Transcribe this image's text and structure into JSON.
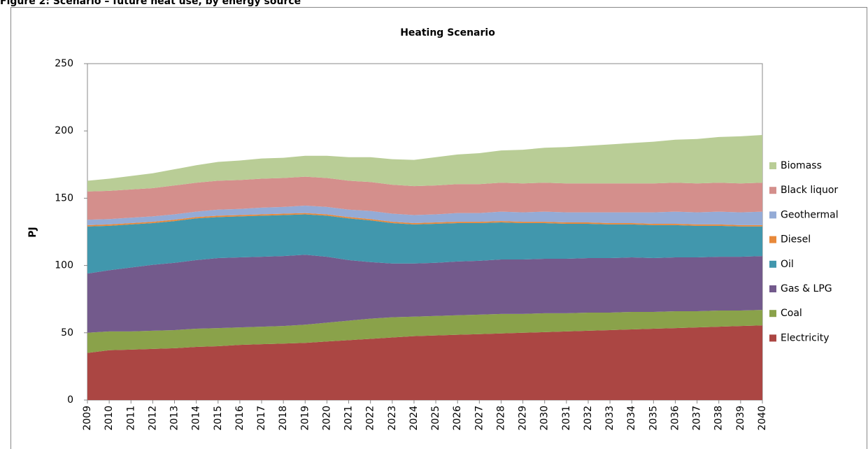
{
  "caption": "Figure 2: Scenario – future heat use, by energy source",
  "chart_data": {
    "type": "stacked_area",
    "title": "Heating Scenario",
    "y_label": "PJ",
    "categories": [
      "2009",
      "2010",
      "2011",
      "2012",
      "2013",
      "2014",
      "2015",
      "2016",
      "2017",
      "2018",
      "2019",
      "2020",
      "2021",
      "2022",
      "2023",
      "2024",
      "2025",
      "2026",
      "2027",
      "2028",
      "2029",
      "2030",
      "2031",
      "2032",
      "2033",
      "2034",
      "2035",
      "2036",
      "2037",
      "2038",
      "2039",
      "2040"
    ],
    "ylim": [
      0,
      250
    ],
    "yticks": [
      0,
      50,
      100,
      150,
      200,
      250
    ],
    "legend": "right",
    "series": [
      {
        "name": "Electricity",
        "color": "#ab4643",
        "values": [
          35,
          37,
          37.5,
          38,
          38.5,
          39.5,
          40,
          41,
          41.5,
          42,
          42.5,
          43.5,
          44.5,
          45.5,
          46.5,
          47.5,
          48,
          48.5,
          49,
          49.5,
          50,
          50.5,
          51,
          51.5,
          52,
          52.5,
          53,
          53.5,
          54,
          54.5,
          55,
          55.5
        ]
      },
      {
        "name": "Coal",
        "color": "#8aa24a",
        "values": [
          15,
          14,
          13.5,
          13.5,
          13.5,
          13.5,
          13.5,
          13,
          13,
          13,
          13.5,
          14,
          14.5,
          15,
          15,
          14.5,
          14.5,
          14.5,
          14.5,
          14.5,
          14,
          14,
          13.5,
          13.5,
          13,
          13,
          12.5,
          12.5,
          12,
          12,
          11.5,
          11.5
        ]
      },
      {
        "name": "Gas & LPG",
        "color": "#735a8c",
        "values": [
          44,
          45.5,
          47.5,
          49,
          50,
          51,
          52,
          52,
          52,
          52,
          52,
          49,
          45,
          42,
          40,
          39.5,
          39.5,
          40,
          40,
          40.5,
          40.5,
          40.5,
          40.5,
          40.5,
          40.5,
          40.5,
          40,
          40,
          40,
          40,
          40,
          40
        ]
      },
      {
        "name": "Oil",
        "color": "#4197ad",
        "values": [
          35,
          33,
          32,
          31,
          31,
          31,
          30.5,
          30.5,
          30.5,
          30.5,
          30,
          30.5,
          31,
          31,
          30,
          29,
          29,
          28.5,
          28,
          27.5,
          27,
          26.5,
          26,
          25.5,
          25,
          24.5,
          24.5,
          24,
          23.5,
          23,
          22.5,
          22
        ]
      },
      {
        "name": "Diesel",
        "color": "#e8893a",
        "values": [
          1,
          1,
          1,
          1,
          1,
          1,
          1,
          1,
          1,
          1,
          1,
          1,
          1,
          1,
          1,
          1,
          1,
          1,
          1,
          1,
          1,
          1,
          1,
          1,
          1,
          1,
          1,
          1,
          1,
          1,
          1,
          1
        ]
      },
      {
        "name": "Geothermal",
        "color": "#94abd6",
        "values": [
          4,
          4,
          4,
          4,
          4,
          4,
          4.5,
          4.5,
          5,
          5,
          5.5,
          5.5,
          5.5,
          6,
          6,
          6,
          6,
          6.5,
          6.5,
          7,
          7,
          7.5,
          7.5,
          7.5,
          8,
          8,
          8.5,
          9,
          9,
          9.5,
          9.5,
          10
        ]
      },
      {
        "name": "Black liquor",
        "color": "#d48f8c",
        "values": [
          21,
          21,
          21,
          21,
          21.5,
          21.5,
          21.5,
          21.5,
          21.5,
          21.5,
          21.5,
          21.5,
          21.5,
          21.5,
          21.5,
          21.5,
          21.5,
          21.5,
          21.5,
          21.5,
          21.5,
          21.5,
          21.5,
          21.5,
          21.5,
          21.5,
          21.5,
          21.5,
          21.5,
          21.5,
          21.5,
          21.5
        ]
      },
      {
        "name": "Biomass",
        "color": "#b9cd96",
        "values": [
          8,
          9,
          10,
          11,
          12,
          13,
          14,
          14.5,
          15,
          15,
          15.5,
          16.5,
          17.5,
          18.5,
          19,
          19.5,
          21,
          22,
          23,
          24,
          25,
          26,
          27,
          28,
          29,
          30,
          31,
          32,
          33,
          34,
          35,
          35.5
        ]
      }
    ]
  }
}
